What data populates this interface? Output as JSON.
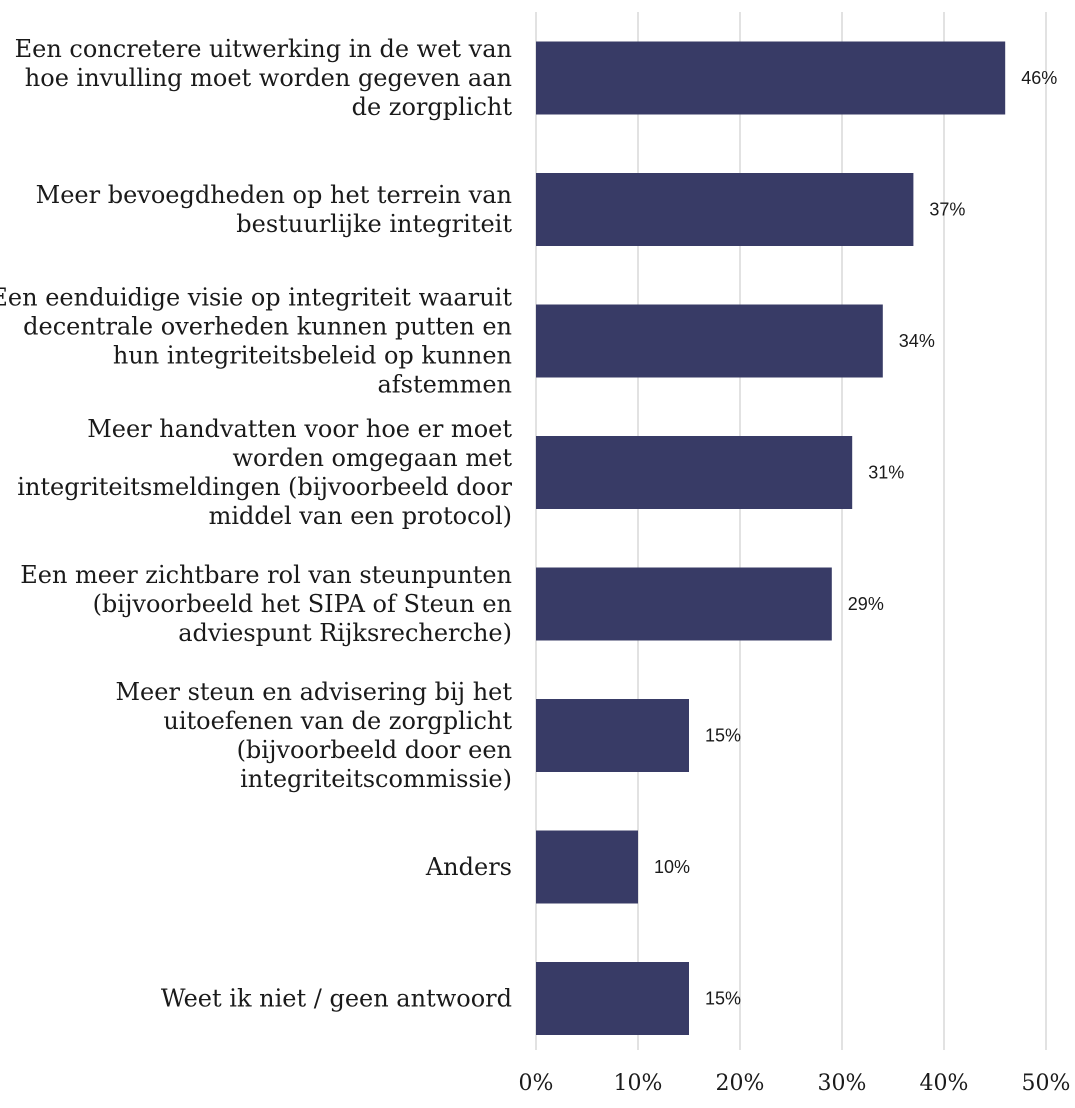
{
  "chart_data": {
    "type": "bar",
    "orientation": "horizontal",
    "title": "",
    "xlabel": "",
    "ylabel": "",
    "xlim": [
      0,
      50
    ],
    "x_tick_values": [
      0,
      10,
      20,
      30,
      40,
      50
    ],
    "x_tick_labels": [
      "0%",
      "10%",
      "20%",
      "30%",
      "40%",
      "50%"
    ],
    "grid": "vertical",
    "bar_color": "#383b66",
    "grid_color": "#d9d9d9",
    "categories": [
      "Een concretere uitwerking in de wet van hoe invulling moet worden gegeven aan de zorgplicht",
      "Meer bevoegdheden op het terrein van bestuurlijke integriteit",
      "Een eenduidige visie op integriteit waaruit decentrale overheden kunnen putten en hun integriteitsbeleid op kunnen afstemmen",
      "Meer handvatten voor hoe er moet worden omgegaan met integriteitsmeldingen (bijvoorbeeld door middel van een protocol)",
      "Een meer zichtbare rol van steunpunten (bijvoorbeeld het SIPA of Steun en adviespunt Rijksrecherche)",
      "Meer steun en advisering bij het uitoefenen van de zorgplicht (bijvoorbeeld door een integriteitscommissie)",
      "Anders",
      "Weet ik niet / geen antwoord"
    ],
    "category_lines": [
      [
        "Een concretere uitwerking in de wet van",
        "hoe invulling moet worden gegeven aan",
        "de zorgplicht"
      ],
      [
        "Meer bevoegdheden op het terrein van",
        "bestuurlijke integriteit"
      ],
      [
        "Een eenduidige visie op integriteit waaruit",
        "decentrale overheden kunnen putten en",
        "hun integriteitsbeleid op kunnen",
        "afstemmen"
      ],
      [
        "Meer handvatten voor hoe er moet",
        "worden omgegaan met",
        "integriteitsmeldingen (bijvoorbeeld door",
        "middel van een protocol)"
      ],
      [
        "Een meer zichtbare rol van steunpunten",
        "(bijvoorbeeld het SIPA of Steun en",
        "adviespunt Rijksrecherche)"
      ],
      [
        "Meer steun en advisering bij het",
        "uitoefenen van de zorgplicht",
        "(bijvoorbeeld door een",
        "integriteitscommissie)"
      ],
      [
        "Anders"
      ],
      [
        "Weet ik niet / geen antwoord"
      ]
    ],
    "values": [
      46,
      37,
      34,
      31,
      29,
      15,
      10,
      15
    ],
    "value_labels": [
      "46%",
      "37%",
      "34%",
      "31%",
      "29%",
      "15%",
      "10%",
      "15%"
    ]
  }
}
